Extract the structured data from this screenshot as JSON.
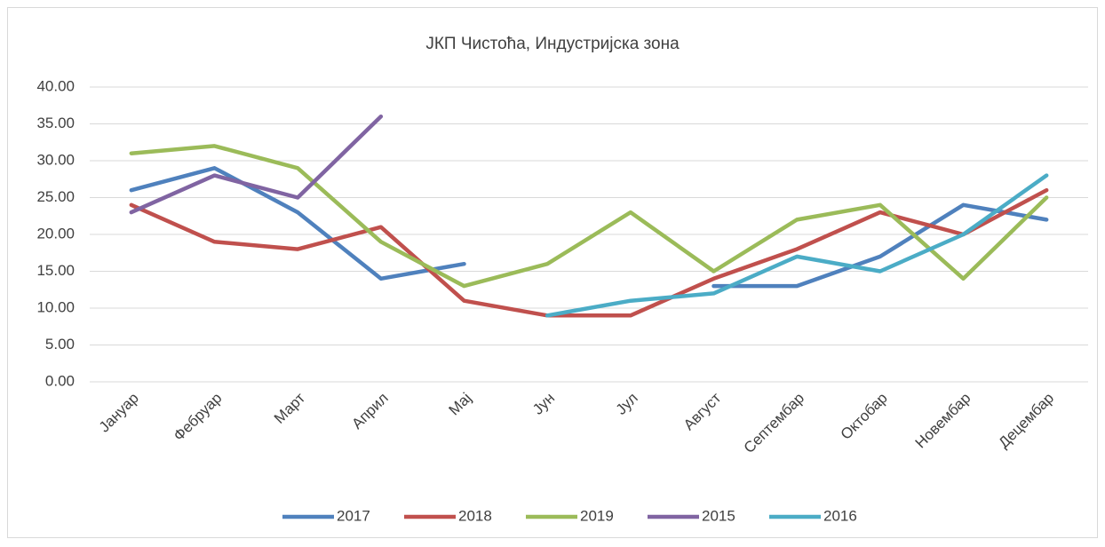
{
  "chart_data": {
    "type": "line",
    "title": "ЈКП Чистоћа, Индустријска зона",
    "categories": [
      "Јануар",
      "Фебруар",
      "Март",
      "Април",
      "Мај",
      "Јун",
      "Јул",
      "Август",
      "Септембар",
      "Октобар",
      "Новембар",
      "Децембар"
    ],
    "series": [
      {
        "name": "2017",
        "color": "#4f81bd",
        "values": [
          26,
          29,
          23,
          14,
          16,
          null,
          null,
          13,
          13,
          17,
          24,
          22
        ]
      },
      {
        "name": "2018",
        "color": "#c0504d",
        "values": [
          24,
          19,
          18,
          21,
          11,
          9,
          9,
          14,
          18,
          23,
          20,
          26
        ]
      },
      {
        "name": "2019",
        "color": "#9bbb59",
        "values": [
          31,
          32,
          29,
          19,
          13,
          16,
          23,
          15,
          22,
          24,
          14,
          25
        ]
      },
      {
        "name": "2015",
        "color": "#8064a2",
        "values": [
          23,
          28,
          25,
          36,
          null,
          null,
          null,
          null,
          null,
          null,
          null,
          null
        ]
      },
      {
        "name": "2016",
        "color": "#4bacc6",
        "values": [
          null,
          null,
          null,
          null,
          null,
          9,
          11,
          12,
          17,
          15,
          20,
          28
        ]
      }
    ],
    "ylim": [
      0,
      40
    ],
    "yticks": [
      {
        "value": 0,
        "label": "0.00"
      },
      {
        "value": 5,
        "label": "5.00"
      },
      {
        "value": 10,
        "label": "10.00"
      },
      {
        "value": 15,
        "label": "15.00"
      },
      {
        "value": 20,
        "label": "20.00"
      },
      {
        "value": 25,
        "label": "25.00"
      },
      {
        "value": 30,
        "label": "30.00"
      },
      {
        "value": 35,
        "label": "35.00"
      },
      {
        "value": 40,
        "label": "40.00"
      }
    ],
    "grid": true,
    "legend": "bottom"
  }
}
